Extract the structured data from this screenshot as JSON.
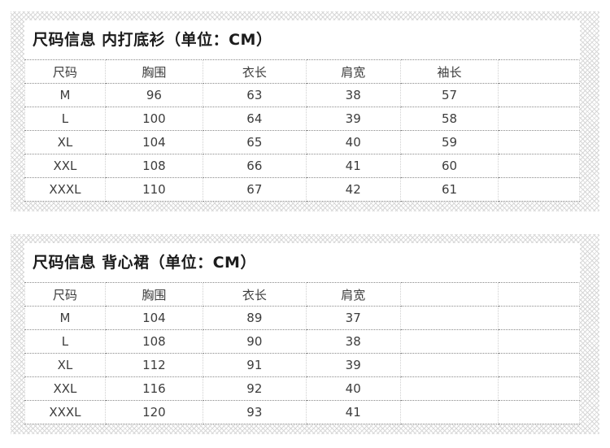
{
  "page": {
    "background": "#ffffff"
  },
  "colors": {
    "pattern_line": "#d7d7d7",
    "title_text": "#1c1c1c",
    "cell_text": "#3d3d3d",
    "border_horizontal": "#8a8a8a",
    "border_vertical": "#cfcfcf"
  },
  "chart_data": [
    {
      "type": "table",
      "title": "尺码信息 内打底衫（单位：CM）",
      "columns": [
        "尺码",
        "胸围",
        "衣长",
        "肩宽",
        "袖长",
        ""
      ],
      "rows": [
        [
          "M",
          "96",
          "63",
          "38",
          "57",
          ""
        ],
        [
          "L",
          "100",
          "64",
          "39",
          "58",
          ""
        ],
        [
          "XL",
          "104",
          "65",
          "40",
          "59",
          ""
        ],
        [
          "XXL",
          "108",
          "66",
          "41",
          "60",
          ""
        ],
        [
          "XXXL",
          "110",
          "67",
          "42",
          "61",
          ""
        ]
      ]
    },
    {
      "type": "table",
      "title": "尺码信息 背心裙（单位：CM）",
      "columns": [
        "尺码",
        "胸围",
        "衣长",
        "肩宽",
        "",
        ""
      ],
      "rows": [
        [
          "M",
          "104",
          "89",
          "37",
          "",
          ""
        ],
        [
          "L",
          "108",
          "90",
          "38",
          "",
          ""
        ],
        [
          "XL",
          "112",
          "91",
          "39",
          "",
          ""
        ],
        [
          "XXL",
          "116",
          "92",
          "40",
          "",
          ""
        ],
        [
          "XXXL",
          "120",
          "93",
          "41",
          "",
          ""
        ]
      ]
    }
  ]
}
